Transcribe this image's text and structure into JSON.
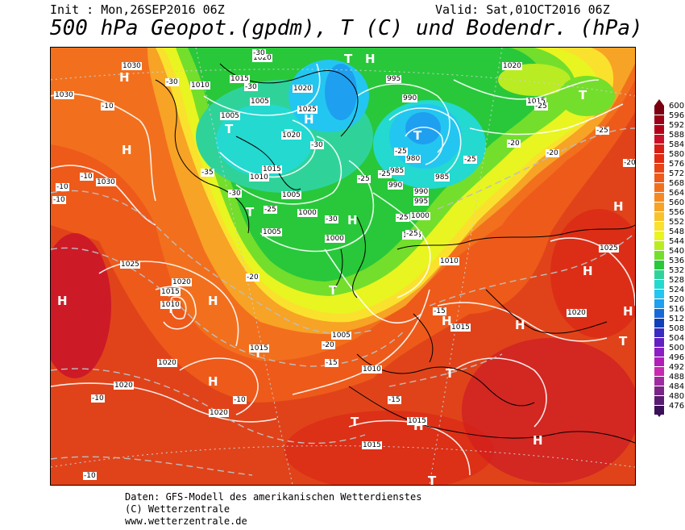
{
  "header": {
    "init": "Init : Mon,26SEP2016 06Z",
    "valid": "Valid: Sat,01OCT2016 06Z",
    "title": "500 hPa Geopot.(gpdm), T (C) und Bodendr. (hPa)"
  },
  "map": {
    "pressure_labels": [
      "1030",
      "1010",
      "1015",
      "1005",
      "1020",
      "1025",
      "1000",
      "995",
      "990",
      "985",
      "980",
      "1030",
      "1025",
      "1020",
      "1015",
      "1010",
      "1005",
      "1000",
      "995",
      "990",
      "985",
      "1005",
      "1010",
      "1000",
      "1005",
      "1010",
      "1015",
      "1020",
      "1025",
      "1030",
      "1020",
      "1010",
      "1015",
      "1005",
      "1010",
      "1015",
      "1020",
      "1025",
      "1020",
      "1015",
      "1020",
      "1015",
      "1025"
    ],
    "temp_labels": [
      "-30",
      "-30",
      "-30",
      "-35",
      "-30",
      "-30",
      "-25",
      "-25",
      "-25",
      "-25",
      "-25",
      "-25",
      "-20",
      "-25",
      "-20",
      "-20",
      "-15",
      "-15",
      "-10",
      "-10",
      "-10",
      "-10",
      "-10",
      "-10",
      "-15",
      "-20",
      "-25",
      "-25",
      "-20",
      "-10"
    ],
    "high_low_markers": [
      "T",
      "H",
      "T",
      "T",
      "T",
      "T",
      "H",
      "H",
      "H",
      "T",
      "H",
      "T",
      "H",
      "H",
      "H",
      "H",
      "T",
      "H",
      "H",
      "T",
      "T",
      "T",
      "H",
      "H",
      "T",
      "H",
      "H",
      "H",
      "H",
      "H",
      "H",
      "T"
    ]
  },
  "legend": {
    "scale_values": [
      "600",
      "596",
      "592",
      "588",
      "584",
      "580",
      "576",
      "572",
      "568",
      "564",
      "560",
      "556",
      "552",
      "548",
      "544",
      "540",
      "536",
      "532",
      "528",
      "524",
      "520",
      "516",
      "512",
      "508",
      "504",
      "500",
      "496",
      "492",
      "488",
      "484",
      "480",
      "476"
    ],
    "scale_colors": [
      "#7a0010",
      "#9a0018",
      "#b3001a",
      "#c8102a",
      "#d81e14",
      "#e22b12",
      "#e84416",
      "#ee5a1a",
      "#f2701d",
      "#f58a22",
      "#f7a326",
      "#f9c22c",
      "#fae12d",
      "#e8f520",
      "#b9ec22",
      "#74de2c",
      "#28c83a",
      "#2fd39a",
      "#23d9d0",
      "#23c6f0",
      "#1e9ff0",
      "#1768d8",
      "#1040b8",
      "#3a2cc0",
      "#6420c4",
      "#8c1ec4",
      "#b21eb8",
      "#c82ab0",
      "#a02aa0",
      "#7a2488",
      "#581c70",
      "#3a1058"
    ]
  },
  "footer": {
    "line1": "Daten: GFS-Modell des amerikanischen Wetterdienstes",
    "line2": "(C) Wetterzentrale",
    "line3": "www.wetterzentrale.de"
  }
}
